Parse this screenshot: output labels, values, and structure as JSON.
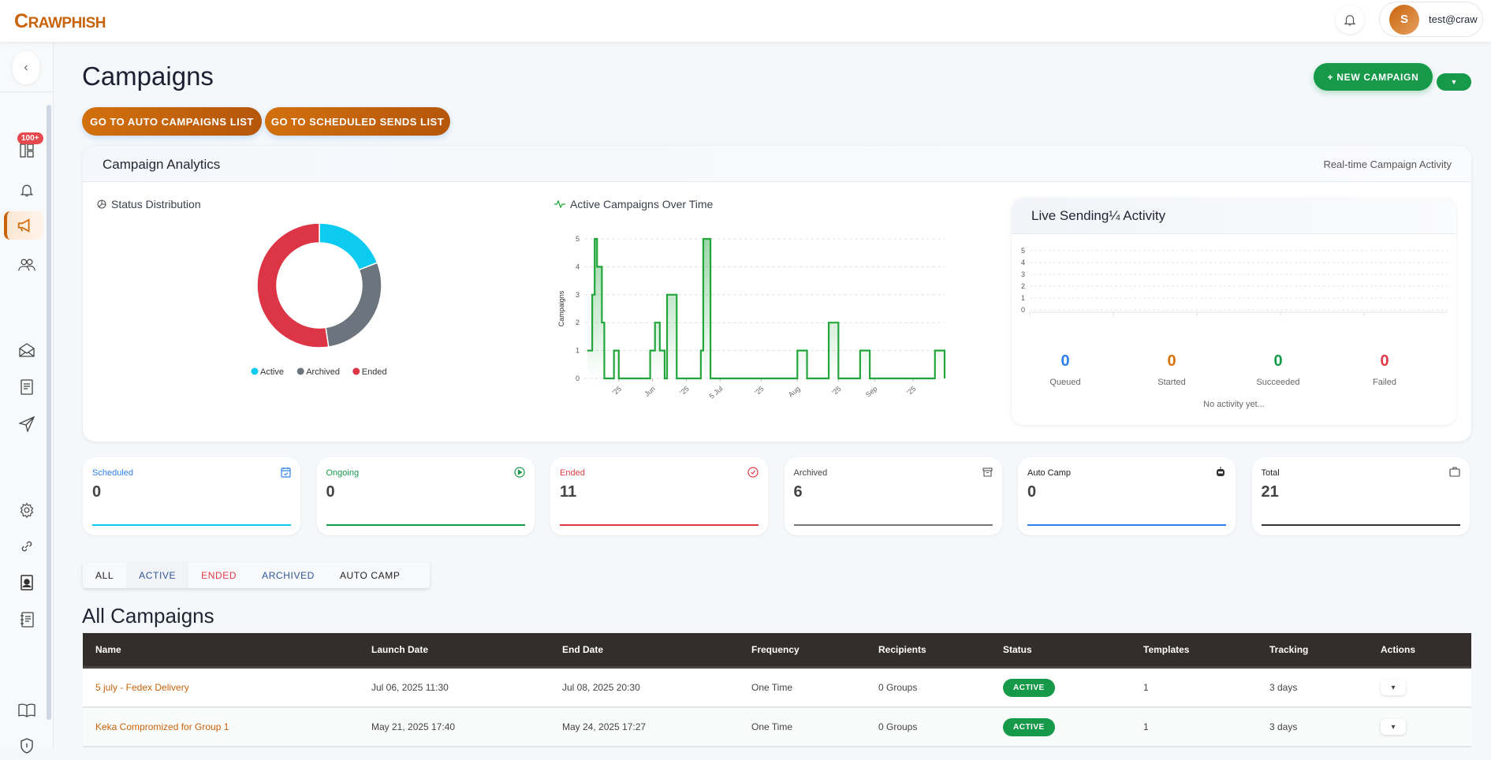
{
  "app": {
    "logo": "CRAWPHISH",
    "user": {
      "initial": "S",
      "email": "test@craw"
    },
    "notification_badge": "100+"
  },
  "colors": {
    "brand": "#c9640c",
    "primary_green": "#17994a",
    "table_header": "#332d2c"
  },
  "sidebar": {
    "items": [
      {
        "icon": "dashboard-icon"
      },
      {
        "icon": "bell-icon"
      },
      {
        "icon": "megaphone-icon",
        "active": true
      },
      {
        "icon": "users-icon"
      },
      {
        "icon": "envelope-open-icon"
      },
      {
        "icon": "document-icon"
      },
      {
        "icon": "send-icon"
      },
      {
        "icon": "gear-icon"
      },
      {
        "icon": "link-icon"
      },
      {
        "icon": "contact-card-icon"
      },
      {
        "icon": "notebook-icon"
      },
      {
        "icon": "book-icon"
      },
      {
        "icon": "shield-icon"
      }
    ]
  },
  "page": {
    "title": "Campaigns",
    "auto_list_btn": "GO TO AUTO CAMPAIGNS LIST",
    "scheduled_btn": "GO TO SCHEDULED SENDS LIST",
    "new_campaign_btn": "+ NEW CAMPAIGN"
  },
  "analytics": {
    "title": "Campaign Analytics",
    "subtitle": "Real-time Campaign Activity",
    "status_title": "Status Distribution",
    "line_title": "Active Campaigns Over Time",
    "live": {
      "title": "Live Sending¼ Activity",
      "no_activity": "No activity yet...",
      "stats": [
        {
          "label": "Queued",
          "value": "0",
          "color": "#2f80ed"
        },
        {
          "label": "Started",
          "value": "0",
          "color": "#d9730d"
        },
        {
          "label": "Succeeded",
          "value": "0",
          "color": "#17994a"
        },
        {
          "label": "Failed",
          "value": "0",
          "color": "#e03a48"
        }
      ]
    }
  },
  "chart_data": [
    {
      "type": "pie",
      "donut": true,
      "title": "Status Distribution",
      "categories": [
        "Active",
        "Archived",
        "Ended"
      ],
      "values": [
        4,
        6,
        11
      ],
      "colors": [
        "#0dcaf0",
        "#6c757d",
        "#dc3545"
      ],
      "legend": "bottom"
    },
    {
      "type": "line",
      "step": true,
      "area": true,
      "title": "Active Campaigns Over Time",
      "ylabel": "Campaigns",
      "ylim": [
        0,
        5
      ],
      "yticks": [
        0,
        1,
        2,
        3,
        4,
        5
      ],
      "grid": true,
      "color": "#22a63c",
      "xlim": [
        "2025-05-05",
        "2025-09-30"
      ],
      "xtick_labels": [
        {
          "date": "2025-05-18",
          "label": "'25"
        },
        {
          "date": "2025-06-01",
          "label": "Jun"
        },
        {
          "date": "2025-06-15",
          "label": "'25"
        },
        {
          "date": "2025-06-29",
          "label": "5 Jul"
        },
        {
          "date": "2025-07-16",
          "label": "'25"
        },
        {
          "date": "2025-07-31",
          "label": "Aug"
        },
        {
          "date": "2025-08-17",
          "label": "'25"
        },
        {
          "date": "2025-09-01",
          "label": "Sep"
        },
        {
          "date": "2025-09-17",
          "label": "'25"
        }
      ],
      "points": [
        [
          "2025-05-05",
          1
        ],
        [
          "2025-05-07",
          3
        ],
        [
          "2025-05-08",
          5
        ],
        [
          "2025-05-09",
          4
        ],
        [
          "2025-05-11",
          2
        ],
        [
          "2025-05-12",
          0
        ],
        [
          "2025-05-16",
          1
        ],
        [
          "2025-05-18",
          0
        ],
        [
          "2025-05-31",
          1
        ],
        [
          "2025-06-02",
          2
        ],
        [
          "2025-06-04",
          1
        ],
        [
          "2025-06-06",
          0
        ],
        [
          "2025-06-07",
          3
        ],
        [
          "2025-06-11",
          0
        ],
        [
          "2025-06-21",
          1
        ],
        [
          "2025-06-22",
          5
        ],
        [
          "2025-06-25",
          0
        ],
        [
          "2025-07-31",
          1
        ],
        [
          "2025-08-04",
          0
        ],
        [
          "2025-08-13",
          2
        ],
        [
          "2025-08-17",
          0
        ],
        [
          "2025-08-26",
          1
        ],
        [
          "2025-08-30",
          0
        ],
        [
          "2025-09-26",
          1
        ],
        [
          "2025-09-30",
          0
        ]
      ]
    },
    {
      "type": "line",
      "title": "Live Sending¼ Activity",
      "ylim": [
        0,
        5
      ],
      "yticks": [
        0,
        1,
        2,
        3,
        4,
        5
      ],
      "grid": true,
      "series": []
    }
  ],
  "cards": [
    {
      "label": "Scheduled",
      "value": "0",
      "color": "#2f80ed",
      "bar": "#0dcaf0",
      "icon": "calendar-icon"
    },
    {
      "label": "Ongoing",
      "value": "0",
      "color": "#17994a",
      "bar": "#17994a",
      "icon": "play-circle-icon"
    },
    {
      "label": "Ended",
      "value": "11",
      "color": "#e03a48",
      "bar": "#e03a48",
      "icon": "check-circle-icon"
    },
    {
      "label": "Archived",
      "value": "6",
      "color": "#444",
      "bar": "#777",
      "icon": "archive-icon"
    },
    {
      "label": "Auto Camp",
      "value": "0",
      "color": "#222",
      "bar": "#2f80ed",
      "icon": "robot-icon"
    },
    {
      "label": "Total",
      "value": "21",
      "color": "#222",
      "bar": "#333",
      "icon": "briefcase-icon"
    }
  ],
  "filters": [
    {
      "label": "ALL",
      "color": "#222"
    },
    {
      "label": "ACTIVE",
      "color": "#2f5597"
    },
    {
      "label": "ENDED",
      "color": "#e03a48"
    },
    {
      "label": "ARCHIVED",
      "color": "#2f5597"
    },
    {
      "label": "AUTO CAMP",
      "color": "#222"
    }
  ],
  "table": {
    "title": "All Campaigns",
    "columns": [
      "Name",
      "Launch Date",
      "End Date",
      "Frequency",
      "Recipients",
      "Status",
      "Templates",
      "Tracking",
      "Actions"
    ],
    "rows": [
      {
        "name": "5 july - Fedex Delivery",
        "launch": "Jul 06, 2025 11:30",
        "end": "Jul 08, 2025 20:30",
        "frequency": "One Time",
        "recipients": "0 Groups",
        "status": "ACTIVE",
        "templates": "1",
        "tracking": "3 days",
        "action": "▾"
      },
      {
        "name": "Keka Compromized for Group 1",
        "launch": "May 21, 2025 17:40",
        "end": "May 24, 2025 17:27",
        "frequency": "One Time",
        "recipients": "0 Groups",
        "status": "ACTIVE",
        "templates": "1",
        "tracking": "3 days",
        "action": "▾"
      }
    ]
  }
}
